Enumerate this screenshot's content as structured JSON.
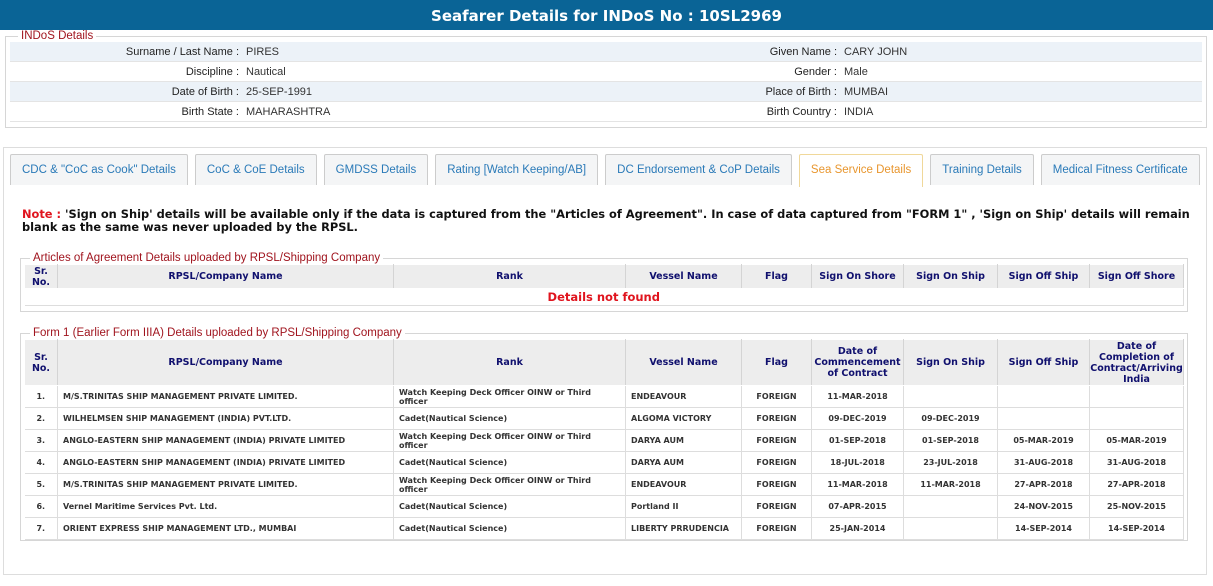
{
  "title": "Seafarer Details for INDoS No : 10SL2969",
  "indos": {
    "legend": "INDoS Details",
    "rows": [
      {
        "l1": "Surname / Last Name :",
        "v1": "PIRES",
        "l2": "Given Name :",
        "v2": "CARY JOHN"
      },
      {
        "l1": "Discipline :",
        "v1": "Nautical",
        "l2": "Gender :",
        "v2": "Male"
      },
      {
        "l1": "Date of Birth :",
        "v1": "25-SEP-1991",
        "l2": "Place of Birth :",
        "v2": "MUMBAI"
      },
      {
        "l1": "Birth State :",
        "v1": "MAHARASHTRA",
        "l2": "Birth Country :",
        "v2": "INDIA"
      }
    ]
  },
  "tabs": [
    "CDC & \"CoC as Cook\" Details",
    "CoC & CoE Details",
    "GMDSS Details",
    "Rating [Watch Keeping/AB]",
    "DC Endorsement & CoP Details",
    "Sea Service Details",
    "Training Details",
    "Medical Fitness Certificate"
  ],
  "active_tab": 5,
  "note": {
    "label": "Note :",
    "text": " 'Sign on Ship' details will be available only if the data is captured from the \"Articles of Agreement\". In case of data captured from \"FORM 1\" , 'Sign on Ship' details will remain blank as the same was never uploaded by the RPSL."
  },
  "articles": {
    "legend": "Articles of Agreement Details uploaded by RPSL/Shipping Company",
    "headers": [
      "Sr. No.",
      "RPSL/Company Name",
      "Rank",
      "Vessel Name",
      "Flag",
      "Sign On Shore",
      "Sign On Ship",
      "Sign Off Ship",
      "Sign Off Shore"
    ],
    "empty": "Details not found"
  },
  "form1": {
    "legend": "Form 1 (Earlier Form IIIA) Details uploaded by RPSL/Shipping Company",
    "headers": [
      "Sr. No.",
      "RPSL/Company Name",
      "Rank",
      "Vessel Name",
      "Flag",
      "Date of Commencement of Contract",
      "Sign On Ship",
      "Sign Off Ship",
      "Date of Completion of Contract/Arriving India"
    ],
    "rows": [
      [
        "1.",
        "M/S.TRINITAS SHIP MANAGEMENT PRIVATE LIMITED.",
        "Watch Keeping Deck Officer OINW or Third officer",
        "ENDEAVOUR",
        "FOREIGN",
        "11-MAR-2018",
        "",
        "",
        ""
      ],
      [
        "2.",
        "WILHELMSEN SHIP MANAGEMENT (INDIA) PVT.LTD.",
        "Cadet(Nautical Science)",
        "ALGOMA VICTORY",
        "FOREIGN",
        "09-DEC-2019",
        "09-DEC-2019",
        "",
        ""
      ],
      [
        "3.",
        "ANGLO-EASTERN SHIP MANAGEMENT (INDIA) PRIVATE LIMITED",
        "Watch Keeping Deck Officer OINW or Third officer",
        "DARYA AUM",
        "FOREIGN",
        "01-SEP-2018",
        "01-SEP-2018",
        "05-MAR-2019",
        "05-MAR-2019"
      ],
      [
        "4.",
        "ANGLO-EASTERN SHIP MANAGEMENT (INDIA) PRIVATE LIMITED",
        "Cadet(Nautical Science)",
        "DARYA AUM",
        "FOREIGN",
        "18-JUL-2018",
        "23-JUL-2018",
        "31-AUG-2018",
        "31-AUG-2018"
      ],
      [
        "5.",
        "M/S.TRINITAS SHIP MANAGEMENT PRIVATE LIMITED.",
        "Watch Keeping Deck Officer OINW or Third officer",
        "ENDEAVOUR",
        "FOREIGN",
        "11-MAR-2018",
        "11-MAR-2018",
        "27-APR-2018",
        "27-APR-2018"
      ],
      [
        "6.",
        "Vernel Maritime Services Pvt. Ltd.",
        "Cadet(Nautical Science)",
        "Portland II",
        "FOREIGN",
        "07-APR-2015",
        "",
        "24-NOV-2015",
        "25-NOV-2015"
      ],
      [
        "7.",
        "ORIENT EXPRESS SHIP MANAGEMENT LTD., MUMBAI",
        "Cadet(Nautical Science)",
        "LIBERTY PRRUDENCIA",
        "FOREIGN",
        "25-JAN-2014",
        "",
        "14-SEP-2014",
        "14-SEP-2014"
      ]
    ]
  }
}
